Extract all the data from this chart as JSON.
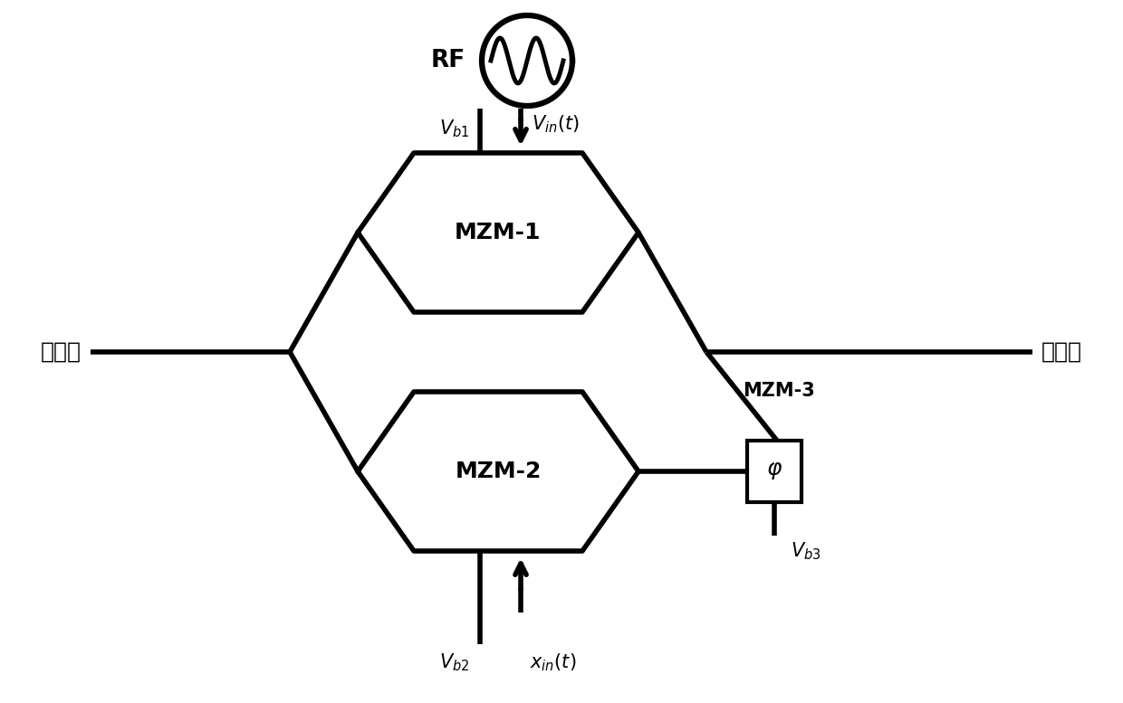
{
  "bg_color": "#ffffff",
  "lc": "#000000",
  "lw": 4.0,
  "fig_w": 12.4,
  "fig_h": 7.77,
  "optical_in": "光输入",
  "optical_out": "光输出",
  "mzm1": "MZM-1",
  "mzm2": "MZM-2",
  "mzm3": "MZM-3",
  "rf": "RF",
  "vb1": "$V_{b1}$",
  "vin": "$V_{in}(t)$",
  "vb2": "$V_{b2}$",
  "xin": "$x_{in}(t)$",
  "vb3": "$V_{b3}$",
  "phi": "$\\varphi$"
}
